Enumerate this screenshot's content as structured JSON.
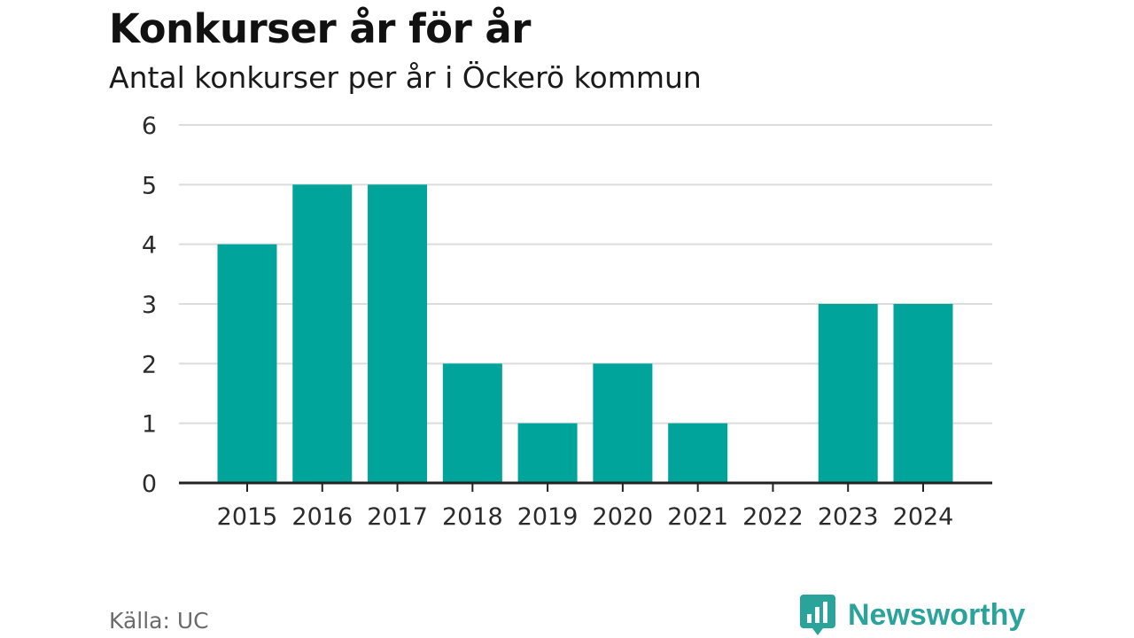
{
  "header": {
    "title": "Konkurser år för år",
    "subtitle": "Antal konkurser per år i Öckerö kommun"
  },
  "footer": {
    "source": "Källa: UC",
    "brand": "Newsworthy",
    "brand_icon": "newsworthy-logo-icon"
  },
  "colors": {
    "bar": "#00a49a",
    "grid": "#dcdcdc",
    "axis": "#222222",
    "brand": "#2aa39a"
  },
  "chart_data": {
    "type": "bar",
    "title": "Konkurser år för år",
    "subtitle": "Antal konkurser per år i Öckerö kommun",
    "xlabel": "",
    "ylabel": "",
    "categories": [
      "2015",
      "2016",
      "2017",
      "2018",
      "2019",
      "2020",
      "2021",
      "2022",
      "2023",
      "2024"
    ],
    "values": [
      4,
      5,
      5,
      2,
      1,
      2,
      1,
      0,
      3,
      3
    ],
    "ylim": [
      0,
      6
    ],
    "yticks": [
      "0",
      "1",
      "2",
      "3",
      "4",
      "5",
      "6"
    ],
    "grid": true,
    "legend": "none"
  }
}
